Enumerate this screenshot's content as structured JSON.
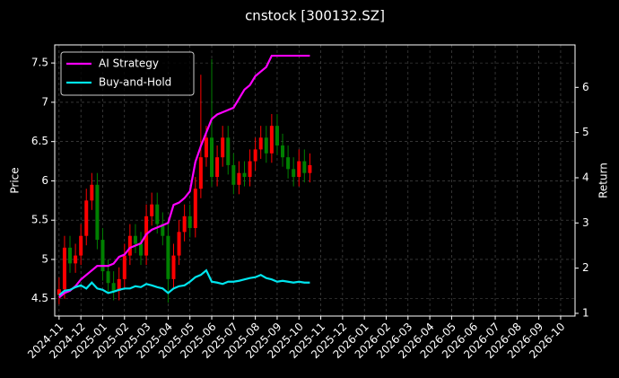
{
  "chart_data": {
    "type": "candlestick",
    "title": "cnstock [300132.SZ]",
    "ylabel": "Price",
    "y2label": "Return",
    "xlim": [
      -0.2,
      23.66
    ],
    "xticks": [
      {
        "value": 0,
        "label": "2024-11"
      },
      {
        "value": 1,
        "label": "2024-12"
      },
      {
        "value": 2,
        "label": "2025-01"
      },
      {
        "value": 3,
        "label": "2025-02"
      },
      {
        "value": 4,
        "label": "2025-03"
      },
      {
        "value": 5,
        "label": "2025-04"
      },
      {
        "value": 6,
        "label": "2025-05"
      },
      {
        "value": 7,
        "label": "2025-06"
      },
      {
        "value": 8,
        "label": "2025-07"
      },
      {
        "value": 9,
        "label": "2025-08"
      },
      {
        "value": 10,
        "label": "2025-09"
      },
      {
        "value": 11,
        "label": "2025-10"
      },
      {
        "value": 12,
        "label": "2025-11"
      },
      {
        "value": 13,
        "label": "2025-12"
      },
      {
        "value": 14,
        "label": "2026-01"
      },
      {
        "value": 15,
        "label": "2026-02"
      },
      {
        "value": 16,
        "label": "2026-03"
      },
      {
        "value": 17,
        "label": "2026-04"
      },
      {
        "value": 18,
        "label": "2026-05"
      },
      {
        "value": 19,
        "label": "2026-06"
      },
      {
        "value": 20,
        "label": "2026-07"
      },
      {
        "value": 21,
        "label": "2026-08"
      },
      {
        "value": 22,
        "label": "2026-09"
      },
      {
        "value": 23,
        "label": "2026-10"
      }
    ],
    "ylim": [
      4.28,
      7.73
    ],
    "yticks": [
      4.5,
      5.0,
      5.5,
      6.0,
      6.5,
      7.0,
      7.5
    ],
    "y2lim": [
      0.94,
      6.94
    ],
    "y2ticks": [
      1,
      2,
      3,
      4,
      5,
      6
    ],
    "grid": true,
    "legend": "upper left",
    "up_color": "#ff0000",
    "down_color": "#008000",
    "x": [
      0,
      0.25,
      0.5,
      0.75,
      1,
      1.25,
      1.5,
      1.75,
      2,
      2.25,
      2.5,
      2.75,
      3,
      3.25,
      3.5,
      3.75,
      4,
      4.25,
      4.5,
      4.75,
      5,
      5.25,
      5.5,
      5.75,
      6,
      6.25,
      6.5,
      6.75,
      7,
      7.25,
      7.5,
      7.75,
      8,
      8.25,
      8.5,
      8.75,
      9,
      9.25,
      9.5,
      9.75,
      10,
      10.25,
      10.5,
      10.75,
      11,
      11.25,
      11.5
    ],
    "open": [
      4.55,
      4.62,
      5.15,
      4.95,
      5.05,
      5.3,
      5.75,
      5.95,
      5.25,
      4.85,
      4.7,
      4.6,
      4.75,
      5.05,
      5.3,
      5.2,
      5.05,
      5.55,
      5.7,
      5.45,
      5.3,
      4.75,
      5.05,
      5.35,
      5.55,
      5.4,
      5.9,
      6.3,
      6.55,
      6.05,
      6.3,
      6.55,
      6.2,
      5.95,
      6.1,
      6.05,
      6.25,
      6.4,
      6.55,
      6.35,
      6.7,
      6.45,
      6.3,
      6.15,
      6.05,
      6.25,
      6.1
    ],
    "high": [
      4.77,
      5.3,
      5.3,
      5.2,
      5.45,
      5.9,
      6.1,
      6.1,
      5.4,
      5.0,
      4.85,
      4.9,
      5.2,
      5.45,
      5.45,
      5.35,
      5.7,
      5.85,
      5.85,
      5.6,
      5.45,
      5.2,
      5.5,
      5.7,
      5.7,
      6.05,
      7.35,
      6.7,
      7.55,
      6.45,
      6.7,
      6.7,
      6.35,
      6.25,
      6.25,
      6.4,
      6.55,
      6.7,
      6.7,
      6.85,
      6.85,
      6.6,
      6.45,
      6.3,
      6.4,
      6.4,
      6.35
    ],
    "low": [
      4.43,
      4.5,
      4.83,
      4.83,
      4.93,
      5.18,
      5.63,
      5.13,
      4.73,
      4.58,
      4.48,
      4.48,
      4.63,
      4.93,
      5.08,
      4.93,
      4.93,
      5.43,
      5.33,
      5.18,
      4.45,
      4.63,
      4.93,
      5.23,
      5.28,
      5.28,
      5.78,
      6.18,
      5.93,
      5.93,
      6.18,
      6.08,
      5.83,
      5.83,
      5.93,
      5.93,
      6.13,
      6.28,
      6.23,
      6.23,
      6.33,
      6.18,
      6.03,
      5.93,
      5.93,
      5.98,
      5.98
    ],
    "close": [
      4.62,
      5.15,
      4.95,
      5.05,
      5.3,
      5.75,
      5.95,
      5.25,
      4.85,
      4.7,
      4.6,
      4.75,
      5.05,
      5.3,
      5.2,
      5.05,
      5.55,
      5.7,
      5.45,
      5.3,
      4.75,
      5.05,
      5.35,
      5.55,
      5.4,
      5.9,
      6.3,
      6.55,
      6.05,
      6.3,
      6.55,
      6.2,
      5.95,
      6.1,
      6.05,
      6.25,
      6.4,
      6.55,
      6.35,
      6.7,
      6.45,
      6.3,
      6.15,
      6.05,
      6.25,
      6.1,
      6.2
    ],
    "series": [
      {
        "name": "AI Strategy",
        "color": "#ff00ff",
        "axis": "y2",
        "values": [
          1.35,
          1.45,
          1.5,
          1.6,
          1.75,
          1.85,
          1.95,
          2.05,
          2.05,
          2.05,
          2.1,
          2.25,
          2.3,
          2.45,
          2.5,
          2.55,
          2.75,
          2.85,
          2.9,
          2.95,
          3.0,
          3.4,
          3.45,
          3.55,
          3.7,
          4.35,
          4.7,
          5.0,
          5.3,
          5.4,
          5.45,
          5.5,
          5.55,
          5.75,
          5.95,
          6.05,
          6.25,
          6.35,
          6.45,
          6.7,
          6.7,
          6.7,
          6.7,
          6.7,
          6.7,
          6.7,
          6.7
        ]
      },
      {
        "name": "Buy-and-Hold",
        "color": "#00e5ee",
        "axis": "y2",
        "values": [
          1.4,
          1.5,
          1.52,
          1.58,
          1.62,
          1.55,
          1.68,
          1.55,
          1.52,
          1.45,
          1.48,
          1.52,
          1.55,
          1.55,
          1.6,
          1.58,
          1.65,
          1.62,
          1.58,
          1.55,
          1.45,
          1.55,
          1.6,
          1.62,
          1.7,
          1.8,
          1.85,
          1.95,
          1.7,
          1.68,
          1.65,
          1.7,
          1.7,
          1.72,
          1.75,
          1.78,
          1.8,
          1.85,
          1.78,
          1.75,
          1.7,
          1.72,
          1.7,
          1.68,
          1.7,
          1.68,
          1.68
        ]
      }
    ]
  }
}
